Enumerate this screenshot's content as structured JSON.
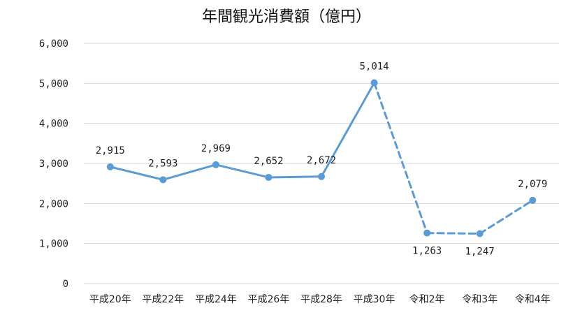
{
  "chart_data": {
    "type": "line",
    "title": "年間観光消費額（億円）",
    "xlabel": "",
    "ylabel": "",
    "categories": [
      "平成20年",
      "平成22年",
      "平成24年",
      "平成26年",
      "平成28年",
      "平成30年",
      "令和2年",
      "令和3年",
      "令和4年"
    ],
    "values": [
      2915,
      2593,
      2969,
      2652,
      2672,
      5014,
      1263,
      1247,
      2079
    ],
    "value_labels": [
      "2,915",
      "2,593",
      "2,969",
      "2,652",
      "2,672",
      "5,014",
      "1,263",
      "1,247",
      "2,079"
    ],
    "ylim": [
      0,
      6000
    ],
    "y_ticks": [
      0,
      1000,
      2000,
      3000,
      4000,
      5000,
      6000
    ],
    "y_tick_labels": [
      "0",
      "1,000",
      "2,000",
      "3,000",
      "4,000",
      "5,000",
      "6,000"
    ],
    "dashed_from_index": 5,
    "grid": true,
    "color": "#5b9bd5",
    "grid_color": "#d9d9d9"
  }
}
